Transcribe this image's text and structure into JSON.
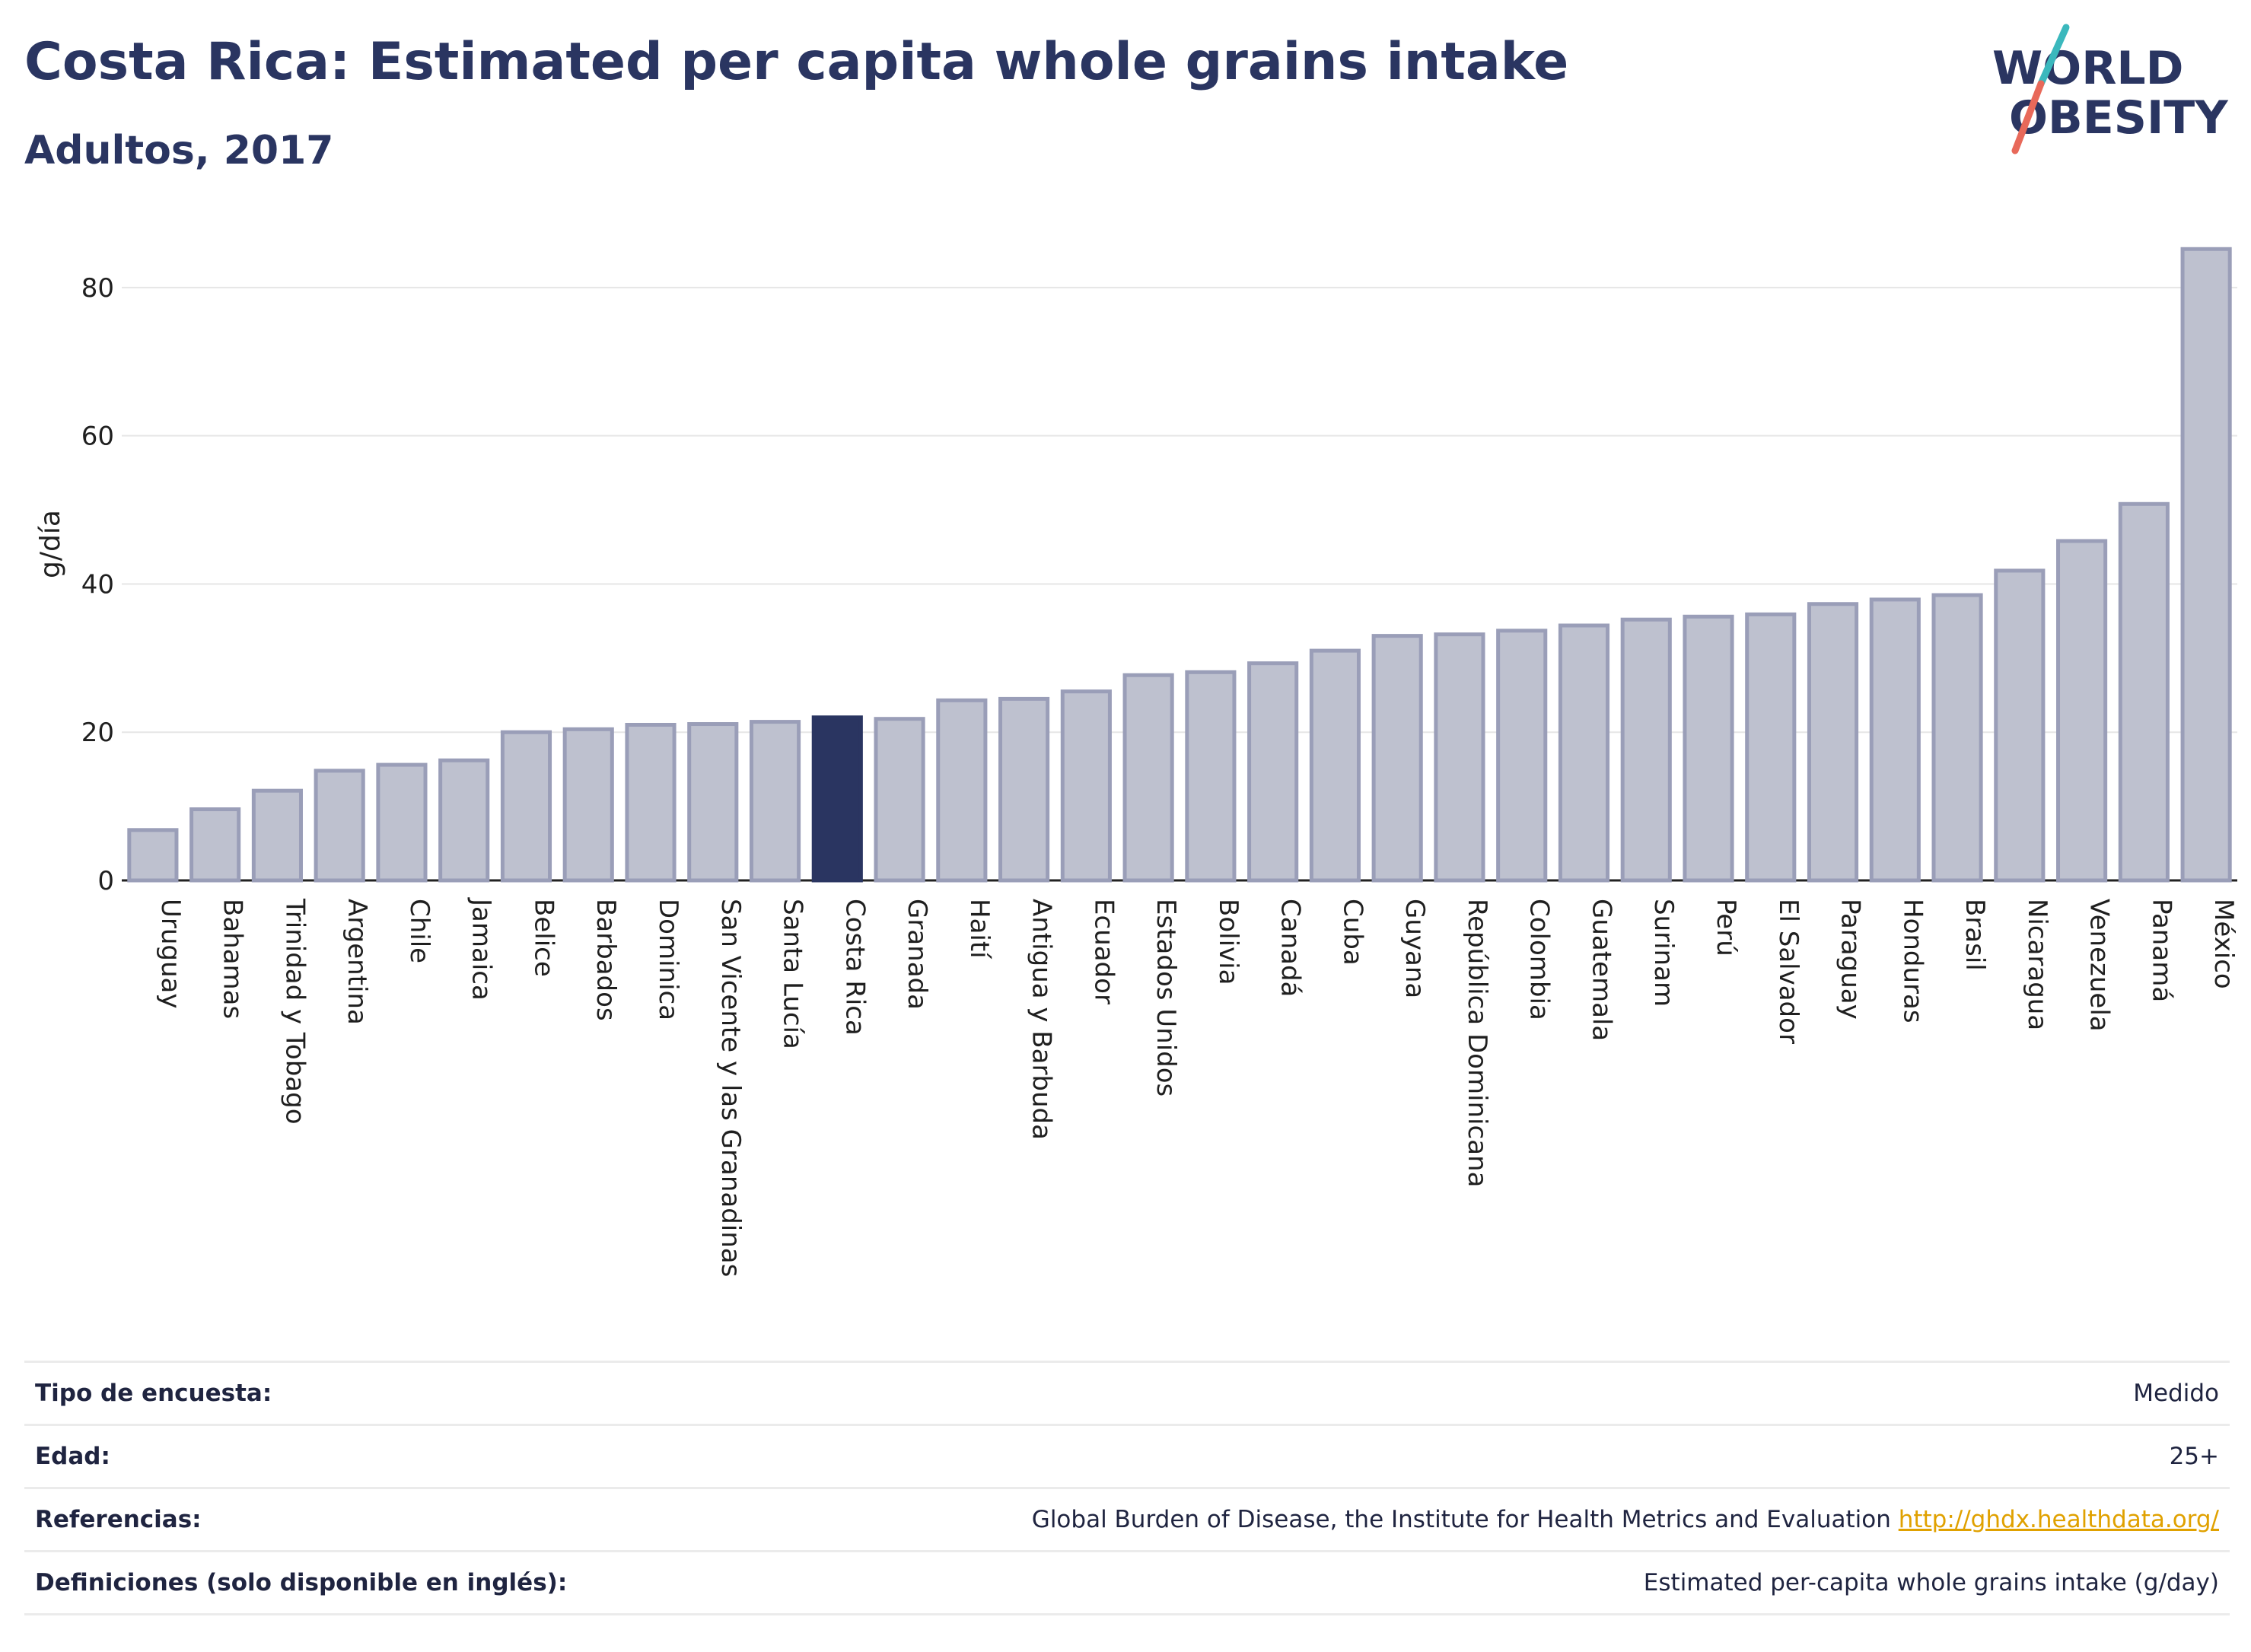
{
  "header": {
    "title": "Costa Rica: Estimated per capita whole grains intake",
    "subtitle": "Adultos, 2017"
  },
  "logo": {
    "line1": "WORLD",
    "line2": "OBESITY",
    "accent_teal": "#3bb8bd",
    "accent_coral": "#e8695a"
  },
  "colors": {
    "highlight": "#2a3561",
    "bar_fill": "#bec1cf",
    "bar_stroke": "#9a9eb8",
    "grid": "#e6e6e6"
  },
  "chart_data": {
    "type": "bar",
    "ylabel": "g/día",
    "ylim": [
      0,
      88
    ],
    "yticks": [
      0,
      20,
      40,
      60,
      80
    ],
    "grid": true,
    "highlight": "Costa Rica",
    "categories": [
      "Uruguay",
      "Bahamas",
      "Trinidad y Tobago",
      "Argentina",
      "Chile",
      "Jamaica",
      "Belice",
      "Barbados",
      "Dominica",
      "San Vicente y las Granadinas",
      "Santa Lucía",
      "Costa Rica",
      "Granada",
      "Haití",
      "Antigua y Barbuda",
      "Ecuador",
      "Estados Unidos",
      "Bolivia",
      "Canadá",
      "Cuba",
      "Guyana",
      "República Dominicana",
      "Colombia",
      "Guatemala",
      "Surinam",
      "Perú",
      "El Salvador",
      "Paraguay",
      "Honduras",
      "Brasil",
      "Nicaragua",
      "Venezuela",
      "Panamá",
      "México"
    ],
    "values": [
      6.8,
      9.6,
      12.1,
      14.8,
      15.6,
      16.2,
      20.0,
      20.4,
      21.0,
      21.1,
      21.4,
      22.0,
      21.8,
      24.3,
      24.5,
      25.5,
      27.7,
      28.1,
      29.3,
      31.0,
      33.0,
      33.2,
      33.7,
      34.4,
      35.2,
      35.6,
      35.9,
      37.3,
      37.9,
      38.5,
      41.8,
      45.8,
      50.8,
      85.2
    ]
  },
  "info": [
    {
      "key": "Tipo de encuesta:",
      "value": "Medido"
    },
    {
      "key": "Edad:",
      "value": "25+"
    },
    {
      "key": "Referencias:",
      "value": "Global Burden of Disease, the Institute for Health Metrics and Evaluation",
      "link": "http://ghdx.healthdata.org/"
    },
    {
      "key": "Definiciones (solo disponible en inglés):",
      "value": "Estimated per-capita whole grains intake (g/day)"
    }
  ]
}
